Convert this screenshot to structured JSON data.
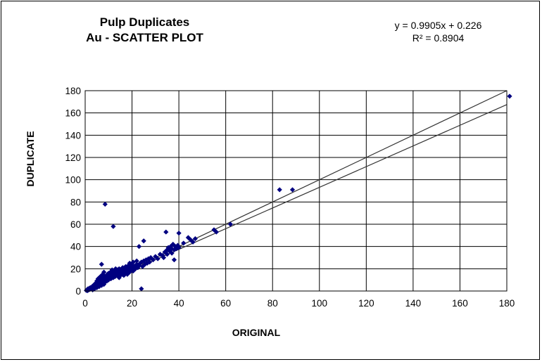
{
  "chart_data": {
    "type": "scatter",
    "title": "Pulp Duplicates",
    "subtitle": "Au -  SCATTER PLOT",
    "xlabel": "ORIGINAL",
    "ylabel": "DUPLICATE",
    "xlim": [
      0,
      180
    ],
    "ylim": [
      0,
      180
    ],
    "xticks": [
      0,
      20,
      40,
      60,
      80,
      100,
      120,
      140,
      160,
      180
    ],
    "yticks": [
      0,
      20,
      40,
      60,
      80,
      100,
      120,
      140,
      160,
      180
    ],
    "grid": true,
    "legend": "none",
    "marker_color": "#000080",
    "trendline": {
      "equation": "y = 0.9905x + 0.226",
      "r_squared": "R² = 0.8904",
      "slope": 0.9905,
      "intercept": 0.226
    },
    "reference_line": {
      "slope": 1,
      "intercept": 0
    },
    "points": [
      [
        0.5,
        0.5
      ],
      [
        0.8,
        1.2
      ],
      [
        1,
        0.3
      ],
      [
        1.2,
        2
      ],
      [
        1.5,
        1
      ],
      [
        1.8,
        2.5
      ],
      [
        2,
        1.5
      ],
      [
        2.2,
        3
      ],
      [
        2.5,
        2
      ],
      [
        2.8,
        3.5
      ],
      [
        3,
        2.5
      ],
      [
        3,
        4
      ],
      [
        3.2,
        1
      ],
      [
        3.5,
        3
      ],
      [
        3.5,
        5
      ],
      [
        3.8,
        4
      ],
      [
        4,
        2
      ],
      [
        4,
        6
      ],
      [
        4.2,
        3.5
      ],
      [
        4.5,
        5
      ],
      [
        4.5,
        7
      ],
      [
        4.8,
        4
      ],
      [
        5,
        3
      ],
      [
        5,
        6
      ],
      [
        5,
        9
      ],
      [
        5.3,
        5
      ],
      [
        5.5,
        7
      ],
      [
        5.5,
        11
      ],
      [
        5.8,
        6
      ],
      [
        6,
        4
      ],
      [
        6,
        8
      ],
      [
        6.2,
        10
      ],
      [
        6.5,
        6
      ],
      [
        6.5,
        13
      ],
      [
        6.8,
        8
      ],
      [
        7,
        5
      ],
      [
        7,
        10
      ],
      [
        7,
        24
      ],
      [
        7.3,
        12
      ],
      [
        7.5,
        7
      ],
      [
        7.5,
        15
      ],
      [
        7.8,
        9
      ],
      [
        8,
        6
      ],
      [
        8,
        11
      ],
      [
        8,
        17
      ],
      [
        8.3,
        13
      ],
      [
        8.5,
        8
      ],
      [
        8.5,
        78
      ],
      [
        8.8,
        10
      ],
      [
        9,
        12
      ],
      [
        9,
        14
      ],
      [
        9.3,
        9
      ],
      [
        9.5,
        15
      ],
      [
        9.5,
        11
      ],
      [
        9.8,
        13
      ],
      [
        10,
        10
      ],
      [
        10,
        16
      ],
      [
        10.2,
        12
      ],
      [
        10.5,
        14
      ],
      [
        10.8,
        17
      ],
      [
        11,
        11
      ],
      [
        11,
        15
      ],
      [
        11.3,
        13
      ],
      [
        11.5,
        16
      ],
      [
        11.5,
        19
      ],
      [
        11.8,
        14
      ],
      [
        12,
        12
      ],
      [
        12,
        17
      ],
      [
        12,
        58
      ],
      [
        12.3,
        15
      ],
      [
        12.5,
        18
      ],
      [
        12.8,
        13
      ],
      [
        13,
        16
      ],
      [
        13,
        20
      ],
      [
        13.3,
        14
      ],
      [
        13.5,
        17
      ],
      [
        13.8,
        19
      ],
      [
        14,
        15
      ],
      [
        14,
        18
      ],
      [
        14.3,
        16
      ],
      [
        14.5,
        12
      ],
      [
        14.5,
        20
      ],
      [
        14.8,
        17
      ],
      [
        15,
        14
      ],
      [
        15,
        19
      ],
      [
        15.3,
        16
      ],
      [
        15.5,
        18
      ],
      [
        15.8,
        15
      ],
      [
        16,
        17
      ],
      [
        16,
        21
      ],
      [
        16.3,
        19
      ],
      [
        16.5,
        14
      ],
      [
        16.8,
        18
      ],
      [
        17,
        16
      ],
      [
        17,
        20
      ],
      [
        17.3,
        22
      ],
      [
        17.5,
        17
      ],
      [
        17.8,
        19
      ],
      [
        18,
        15
      ],
      [
        18,
        21
      ],
      [
        18.3,
        18
      ],
      [
        18.5,
        23
      ],
      [
        18.8,
        20
      ],
      [
        19,
        17
      ],
      [
        19,
        25
      ],
      [
        19.3,
        22
      ],
      [
        19.5,
        19
      ],
      [
        20,
        21
      ],
      [
        20,
        24
      ],
      [
        20.5,
        18
      ],
      [
        20.5,
        26
      ],
      [
        21,
        22
      ],
      [
        21.5,
        20
      ],
      [
        22,
        24
      ],
      [
        22,
        27
      ],
      [
        22.5,
        21
      ],
      [
        23,
        23
      ],
      [
        23,
        40
      ],
      [
        23.5,
        25
      ],
      [
        24,
        2
      ],
      [
        24,
        26
      ],
      [
        24.5,
        22
      ],
      [
        25,
        27
      ],
      [
        25,
        45
      ],
      [
        25.5,
        24
      ],
      [
        26,
        28
      ],
      [
        26.5,
        25
      ],
      [
        27,
        29
      ],
      [
        27.5,
        26
      ],
      [
        28,
        30
      ],
      [
        29,
        28
      ],
      [
        30,
        31
      ],
      [
        31,
        29
      ],
      [
        32,
        33
      ],
      [
        33,
        32
      ],
      [
        33.5,
        30
      ],
      [
        34,
        35
      ],
      [
        34.5,
        53
      ],
      [
        35,
        37
      ],
      [
        35,
        33
      ],
      [
        35.5,
        39
      ],
      [
        36,
        36
      ],
      [
        36.5,
        40
      ],
      [
        37,
        38
      ],
      [
        37,
        34
      ],
      [
        37.5,
        42
      ],
      [
        38,
        37
      ],
      [
        38,
        28
      ],
      [
        38.5,
        40
      ],
      [
        39,
        38
      ],
      [
        39.5,
        41
      ],
      [
        40,
        39
      ],
      [
        40,
        52
      ],
      [
        42,
        43
      ],
      [
        44,
        48
      ],
      [
        45,
        46
      ],
      [
        46,
        44
      ],
      [
        47,
        47
      ],
      [
        55,
        55
      ],
      [
        56,
        53
      ],
      [
        62,
        60
      ],
      [
        83,
        91
      ],
      [
        88.5,
        91
      ],
      [
        182,
        175
      ]
    ]
  }
}
